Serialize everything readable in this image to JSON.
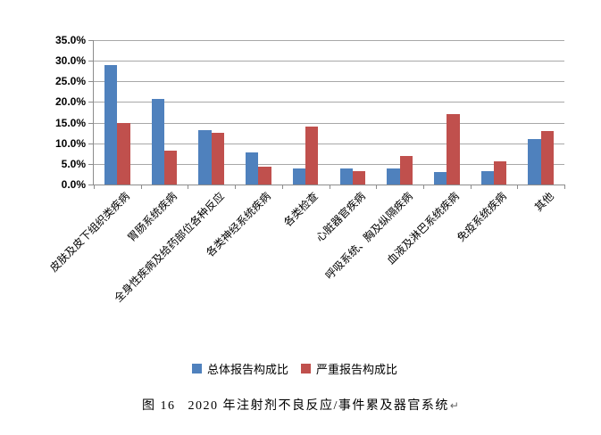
{
  "chart_data": {
    "type": "bar",
    "title": "",
    "xlabel": "",
    "ylabel": "",
    "categories": [
      "皮肤及皮下组织类疾病",
      "胃肠系统疾病",
      "全身性疾病及给药部位各种反应",
      "各类神经系统疾病",
      "各类检查",
      "心脏器官疾病",
      "呼吸系统、胸及纵隔疾病",
      "血液及淋巴系统疾病",
      "免疫系统疾病",
      "其他"
    ],
    "series": [
      {
        "name": "总体报告构成比",
        "color": "#4F81BD",
        "values": [
          28.9,
          20.7,
          13.2,
          7.8,
          3.9,
          3.8,
          3.9,
          3.1,
          3.2,
          11.1
        ]
      },
      {
        "name": "严重报告构成比",
        "color": "#C0504D",
        "values": [
          15.0,
          8.3,
          12.6,
          4.3,
          14.1,
          3.2,
          7.0,
          17.1,
          5.7,
          13.0
        ]
      }
    ],
    "ylim": [
      0,
      35
    ],
    "ytick_step": 5,
    "ytick_labels": [
      "0.0%",
      "5.0%",
      "10.0%",
      "15.0%",
      "20.0%",
      "25.0%",
      "30.0%",
      "35.0%"
    ],
    "grid": true,
    "legend_position": "bottom",
    "x_label_rotation_deg": 45
  },
  "caption": {
    "figure_label": "图 16",
    "text": "2020 年注射剂不良反应/事件累及器官系统",
    "paragraph_mark": "↵"
  },
  "colors": {
    "background": "#ffffff",
    "grid": "#a8a8a8",
    "axis": "#8c8c8c",
    "text": "#000000",
    "paragraph_mark": "#666666"
  }
}
